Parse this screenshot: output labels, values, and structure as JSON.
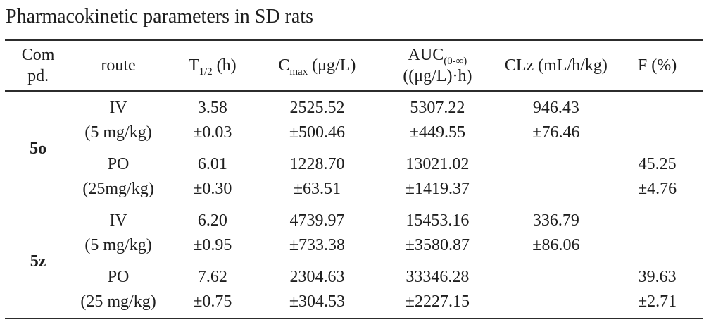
{
  "title": "Pharmacokinetic parameters in SD rats",
  "table": {
    "headers": {
      "compd": {
        "line1": "Com",
        "line2": "pd."
      },
      "route": "route",
      "t12": {
        "base": "T",
        "sub": "1/2",
        "rest": " (h)"
      },
      "cmax": {
        "base": "C",
        "sub": "max",
        "rest": " (μg/L)"
      },
      "auc": {
        "base": "AUC",
        "sub": "(0-∞)",
        "line2": "((μg/L)·h)"
      },
      "clz": "CLz (mL/h/kg)",
      "f": "F (%)"
    },
    "groups": [
      {
        "compound": "5o",
        "rows": [
          {
            "route": "IV",
            "dose": "(5 mg/kg)",
            "t12": "3.58",
            "t12_sd": "±0.03",
            "cmax": "2525.52",
            "cmax_sd": "±500.46",
            "auc": "5307.22",
            "auc_sd": "±449.55",
            "clz": "946.43",
            "clz_sd": "±76.46",
            "f": "",
            "f_sd": ""
          },
          {
            "route": "PO",
            "dose": "(25mg/kg)",
            "t12": "6.01",
            "t12_sd": "±0.30",
            "cmax": "1228.70",
            "cmax_sd": "±63.51",
            "auc": "13021.02",
            "auc_sd": "±1419.37",
            "clz": "",
            "clz_sd": "",
            "f": "45.25",
            "f_sd": "±4.76"
          }
        ]
      },
      {
        "compound": "5z",
        "rows": [
          {
            "route": "IV",
            "dose": "(5 mg/kg)",
            "t12": "6.20",
            "t12_sd": "±0.95",
            "cmax": "4739.97",
            "cmax_sd": "±733.38",
            "auc": "15453.16",
            "auc_sd": "±3580.87",
            "clz": "336.79",
            "clz_sd": "±86.06",
            "f": "",
            "f_sd": ""
          },
          {
            "route": "PO",
            "dose": "(25 mg/kg)",
            "t12": "7.62",
            "t12_sd": "±0.75",
            "cmax": "2304.63",
            "cmax_sd": "±304.53",
            "auc": "33346.28",
            "auc_sd": "±2227.15",
            "clz": "",
            "clz_sd": "",
            "f": "39.63",
            "f_sd": "±2.71"
          }
        ]
      }
    ]
  }
}
